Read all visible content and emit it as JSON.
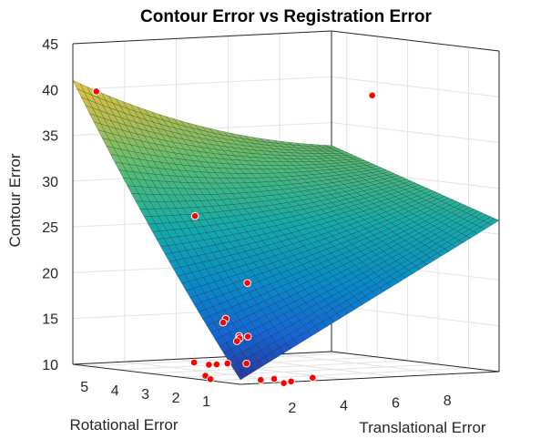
{
  "chart_data": {
    "type": "surface3d",
    "title": "Contour Error vs Registration Error",
    "xlabel": "Translational Error",
    "ylabel": "Rotational Error",
    "zlabel": "Contour Error",
    "xlim": [
      0,
      10
    ],
    "ylim": [
      0,
      5.5
    ],
    "zlim": [
      10,
      45
    ],
    "xticks": [
      "2",
      "4",
      "6",
      "8"
    ],
    "yticks": [
      "1",
      "2",
      "3",
      "4",
      "5"
    ],
    "zticks": [
      "10",
      "15",
      "20",
      "25",
      "30",
      "35",
      "40",
      "45"
    ],
    "grid": true,
    "colormap": "parula",
    "surface_corners": {
      "x0_y0": 10.5,
      "x10_y0": 26.5,
      "x0_y5_5": 41,
      "x10_y5_5": 32.5
    },
    "points_series": {
      "marker_color": "#ff0000",
      "points": [
        {
          "x": 5.8,
          "y": 0.6,
          "z": 40.5
        },
        {
          "x": 0.2,
          "y": 4.9,
          "z": 40
        },
        {
          "x": 0.6,
          "y": 2.0,
          "z": 27.5
        },
        {
          "x": 1.8,
          "y": 1.3,
          "z": 20.3
        },
        {
          "x": 1.2,
          "y": 1.5,
          "z": 16.4
        },
        {
          "x": 1.1,
          "y": 1.5,
          "z": 16.0
        },
        {
          "x": 1.6,
          "y": 1.4,
          "z": 14.5
        },
        {
          "x": 1.5,
          "y": 1.3,
          "z": 14.3
        },
        {
          "x": 1.4,
          "y": 1.3,
          "z": 14.0
        },
        {
          "x": 1.7,
          "y": 1.2,
          "z": 14.5
        },
        {
          "x": 0.8,
          "y": 2.2,
          "z": 11.4
        },
        {
          "x": 0.9,
          "y": 1.8,
          "z": 11.3
        },
        {
          "x": 1.2,
          "y": 1.8,
          "z": 11.3
        },
        {
          "x": 1.5,
          "y": 1.7,
          "z": 11.4
        },
        {
          "x": 2.0,
          "y": 1.5,
          "z": 11.4
        },
        {
          "x": 1.0,
          "y": 2.0,
          "z": 10.0
        },
        {
          "x": 1.2,
          "y": 2.0,
          "z": 9.6
        },
        {
          "x": 2.2,
          "y": 1.2,
          "z": 9.7
        },
        {
          "x": 2.6,
          "y": 1.1,
          "z": 9.8
        },
        {
          "x": 2.5,
          "y": 0.7,
          "z": 9.5
        },
        {
          "x": 2.9,
          "y": 0.8,
          "z": 9.6
        },
        {
          "x": 3.5,
          "y": 0.6,
          "z": 10.0
        }
      ]
    }
  }
}
